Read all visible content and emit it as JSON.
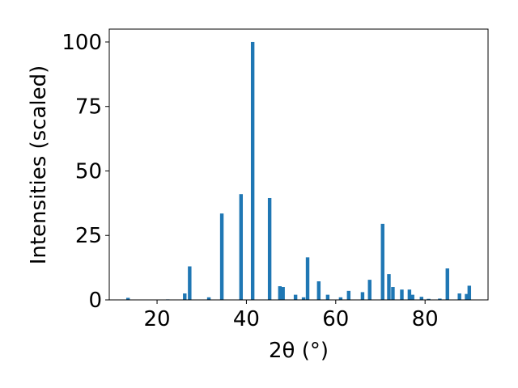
{
  "chart_data": {
    "type": "bar",
    "x_label": "2θ (°)",
    "y_label": "Intensities (scaled)",
    "x": [
      13.5,
      22.4,
      26.2,
      27.3,
      31.6,
      34.5,
      38.8,
      41.4,
      45.2,
      47.5,
      48.2,
      51.0,
      52.8,
      53.7,
      56.2,
      58.2,
      61.1,
      62.9,
      66.0,
      67.6,
      70.5,
      71.9,
      72.8,
      74.8,
      76.5,
      77.2,
      79.2,
      80.8,
      83.3,
      85.0,
      87.7,
      89.3,
      89.9
    ],
    "values": [
      0.8,
      0.2,
      2.5,
      13,
      1,
      33.5,
      41,
      100,
      39.5,
      5.3,
      5,
      2,
      1,
      16.5,
      7.2,
      2,
      1,
      3.5,
      3,
      7.8,
      29.5,
      10,
      5,
      4,
      4,
      2,
      1.2,
      0.4,
      0.5,
      12.2,
      2.5,
      2.3,
      5.5
    ],
    "color": "#1f77b4",
    "xlim": [
      9.3,
      94.1
    ],
    "xticks": [
      20,
      40,
      60,
      80
    ],
    "ylim": [
      0,
      105
    ],
    "yticks": [
      0,
      25,
      50,
      75,
      100
    ]
  }
}
